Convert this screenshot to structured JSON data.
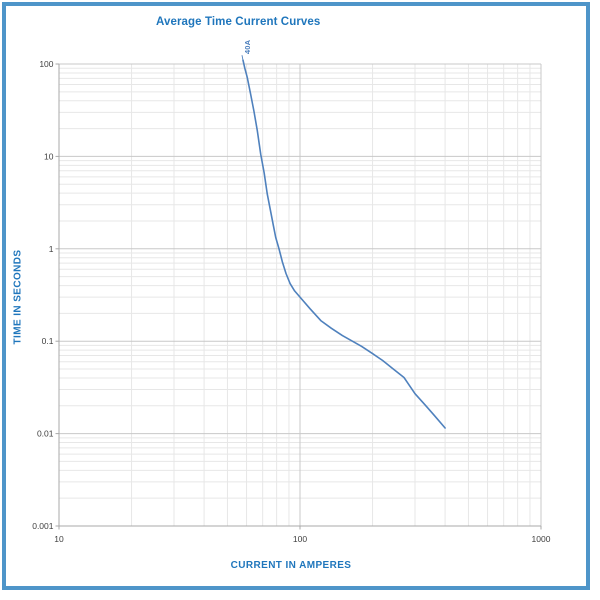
{
  "window": {
    "frame_border_color": "#4e95c9",
    "background_color": "#ffffff"
  },
  "chart_data": {
    "type": "line",
    "title": "Average Time Current Curves",
    "xlabel": "CURRENT IN AMPERES",
    "ylabel": "TIME IN SECONDS",
    "x_scale": "log",
    "y_scale": "log",
    "xlim": [
      10,
      1000
    ],
    "ylim": [
      0.001,
      100
    ],
    "x_ticks": [
      {
        "value": 10,
        "label": "10"
      },
      {
        "value": 100,
        "label": "100"
      },
      {
        "value": 1000,
        "label": "1000"
      }
    ],
    "y_ticks": [
      {
        "value": 100,
        "label": "100"
      },
      {
        "value": 10,
        "label": "10"
      },
      {
        "value": 1,
        "label": "1"
      },
      {
        "value": 0.1,
        "label": "0.1"
      },
      {
        "value": 0.01,
        "label": "0.01"
      },
      {
        "value": 0.001,
        "label": "0.001"
      }
    ],
    "grid": {
      "major": true,
      "minor": true,
      "minor_divisions": "2-9 per decade"
    },
    "legend": "none",
    "series": [
      {
        "name": "40A",
        "points_amperes_seconds": [
          [
            58,
            110
          ],
          [
            59,
            90
          ],
          [
            60.4,
            72
          ],
          [
            62.3,
            48
          ],
          [
            64.4,
            31
          ],
          [
            66.5,
            19
          ],
          [
            68.7,
            10.6
          ],
          [
            71,
            6.6
          ],
          [
            73.2,
            3.9
          ],
          [
            75.5,
            2.55
          ],
          [
            77.5,
            1.8
          ],
          [
            79.3,
            1.33
          ],
          [
            81.8,
            1.0
          ],
          [
            84.5,
            0.72
          ],
          [
            87.5,
            0.54
          ],
          [
            91,
            0.42
          ],
          [
            95,
            0.35
          ],
          [
            100,
            0.3
          ],
          [
            110,
            0.225
          ],
          [
            122,
            0.167
          ],
          [
            135,
            0.138
          ],
          [
            150,
            0.115
          ],
          [
            165,
            0.1
          ],
          [
            180,
            0.088
          ],
          [
            200,
            0.0735
          ],
          [
            220,
            0.062
          ],
          [
            246,
            0.049
          ],
          [
            270,
            0.0405
          ],
          [
            300,
            0.027
          ],
          [
            330,
            0.0205
          ],
          [
            360,
            0.0158
          ],
          [
            400,
            0.0115
          ]
        ]
      }
    ]
  },
  "colors": {
    "title_text": "#1f76bc",
    "axis_title_text": "#1f76bc",
    "tick_label_text": "#3f3f3f",
    "curve": "#4f81bd",
    "curve_label": "#4f81bd",
    "grid_major": "#c8c8c8",
    "grid_minor": "#e7e7e7",
    "axis_line": "#a9a9a9"
  }
}
